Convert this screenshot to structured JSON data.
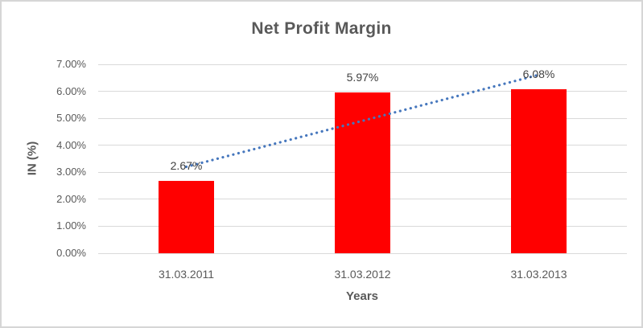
{
  "chart_data": {
    "type": "bar",
    "title": "Net Profit Margin",
    "categories": [
      "31.03.2011",
      "31.03.2012",
      "31.03.2013"
    ],
    "values": [
      2.67,
      5.97,
      6.08
    ],
    "value_labels": [
      "2.67%",
      "5.97%",
      "6.08%"
    ],
    "xlabel": "Years",
    "ylabel": "IN (%)",
    "ylim": [
      0,
      7
    ],
    "ytick_labels": [
      "0.00%",
      "1.00%",
      "2.00%",
      "3.00%",
      "4.00%",
      "5.00%",
      "6.00%",
      "7.00%"
    ],
    "grid": true,
    "legend": "none",
    "bar_color": "#ff0000",
    "trendline": {
      "type": "linear",
      "style": "dotted",
      "color": "#4677bd"
    },
    "colors": {
      "title_text": "#595959",
      "axis_text": "#595959",
      "data_label_text": "#404040",
      "gridline": "#d9d9d9",
      "chart_border": "#d6d6d6",
      "background": "#ffffff"
    }
  }
}
